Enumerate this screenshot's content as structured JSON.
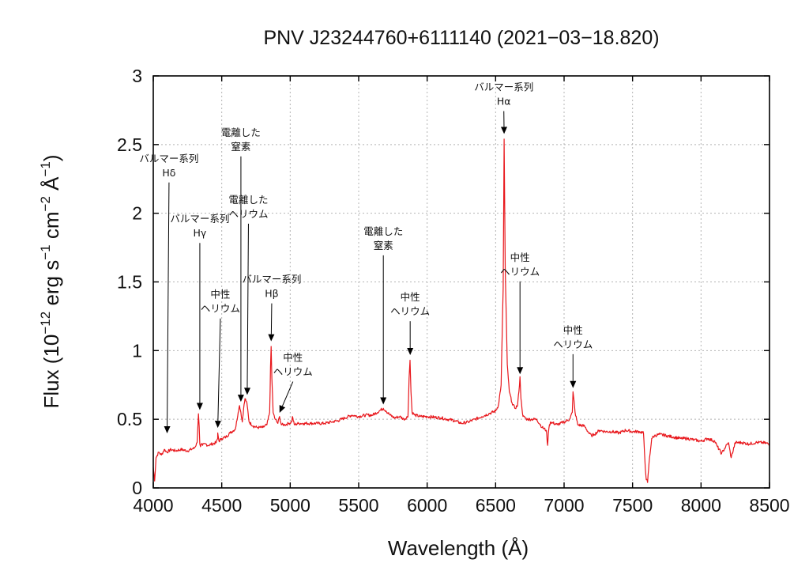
{
  "chart_data": {
    "type": "line",
    "title": "PNV J23244760+6111140 (2021−03−18.820)",
    "xlabel": "Wavelength (Å)",
    "ylabel_parts": {
      "pre": "Flux (10",
      "exp1": "−12",
      "mid": " erg s",
      "exp2": "−1",
      "mid2": " cm",
      "exp3": "−2",
      "mid3": " Å",
      "exp4": "−1",
      "post": ")"
    },
    "xlim": [
      4000,
      8500
    ],
    "ylim": [
      0,
      3
    ],
    "xticks": [
      4000,
      4500,
      5000,
      5500,
      6000,
      6500,
      7000,
      7500,
      8000,
      8500
    ],
    "yticks": [
      0,
      0.5,
      1,
      1.5,
      2,
      2.5,
      3
    ],
    "ytick_labels": [
      "0",
      "0.5",
      "1",
      "1.5",
      "2",
      "2.5",
      "3"
    ],
    "grid": true,
    "line_color": "#e8161b",
    "series": [
      {
        "x": [
          4000,
          4010,
          4020,
          4040,
          4060,
          4080,
          4100,
          4130,
          4160,
          4200,
          4250,
          4300,
          4320,
          4330,
          4335,
          4340,
          4345,
          4350,
          4360,
          4380,
          4400,
          4430,
          4460,
          4470,
          4471,
          4480,
          4500,
          4530,
          4560,
          4600,
          4620,
          4630,
          4640,
          4650,
          4660,
          4670,
          4680,
          4686,
          4700,
          4730,
          4760,
          4800,
          4830,
          4850,
          4856,
          4861,
          4866,
          4875,
          4890,
          4910,
          4922,
          4935,
          4960,
          4990,
          5010,
          5016,
          5030,
          5060,
          5100,
          5150,
          5200,
          5250,
          5300,
          5350,
          5400,
          5450,
          5500,
          5550,
          5600,
          5650,
          5680,
          5700,
          5730,
          5760,
          5800,
          5830,
          5860,
          5868,
          5875,
          5882,
          5890,
          5910,
          5950,
          6000,
          6100,
          6200,
          6250,
          6300,
          6350,
          6400,
          6450,
          6500,
          6520,
          6540,
          6555,
          6562,
          6570,
          6585,
          6600,
          6620,
          6640,
          6660,
          6670,
          6678,
          6685,
          6700,
          6730,
          6760,
          6800,
          6840,
          6870,
          6880,
          6885,
          6890,
          6900,
          6950,
          7000,
          7040,
          7060,
          7065,
          7070,
          7080,
          7100,
          7150,
          7180,
          7200,
          7220,
          7260,
          7300,
          7350,
          7400,
          7450,
          7500,
          7550,
          7580,
          7590,
          7600,
          7610,
          7620,
          7640,
          7660,
          7700,
          7750,
          7800,
          7850,
          7900,
          7950,
          8000,
          8050,
          8100,
          8120,
          8150,
          8180,
          8200,
          8220,
          8250,
          8300,
          8350,
          8400,
          8450,
          8500
        ],
        "y": [
          0.15,
          0.05,
          0.22,
          0.26,
          0.24,
          0.28,
          0.26,
          0.28,
          0.27,
          0.28,
          0.27,
          0.29,
          0.33,
          0.54,
          0.45,
          0.32,
          0.3,
          0.32,
          0.31,
          0.32,
          0.31,
          0.32,
          0.33,
          0.36,
          0.4,
          0.34,
          0.36,
          0.37,
          0.4,
          0.43,
          0.55,
          0.6,
          0.55,
          0.48,
          0.58,
          0.65,
          0.63,
          0.6,
          0.48,
          0.45,
          0.44,
          0.44,
          0.46,
          0.55,
          0.88,
          1.03,
          0.8,
          0.55,
          0.5,
          0.47,
          0.52,
          0.46,
          0.46,
          0.47,
          0.48,
          0.52,
          0.46,
          0.47,
          0.47,
          0.47,
          0.47,
          0.47,
          0.48,
          0.49,
          0.51,
          0.53,
          0.52,
          0.53,
          0.53,
          0.56,
          0.58,
          0.56,
          0.53,
          0.51,
          0.52,
          0.5,
          0.52,
          0.8,
          0.93,
          0.7,
          0.55,
          0.53,
          0.52,
          0.52,
          0.51,
          0.49,
          0.47,
          0.48,
          0.5,
          0.52,
          0.54,
          0.56,
          0.6,
          0.75,
          1.45,
          2.54,
          1.6,
          0.9,
          0.7,
          0.62,
          0.58,
          0.6,
          0.7,
          0.81,
          0.65,
          0.52,
          0.5,
          0.5,
          0.5,
          0.44,
          0.42,
          0.31,
          0.4,
          0.44,
          0.48,
          0.46,
          0.48,
          0.5,
          0.55,
          0.7,
          0.66,
          0.55,
          0.46,
          0.45,
          0.4,
          0.38,
          0.39,
          0.42,
          0.41,
          0.41,
          0.4,
          0.42,
          0.41,
          0.41,
          0.4,
          0.2,
          0.06,
          0.04,
          0.18,
          0.36,
          0.38,
          0.39,
          0.38,
          0.37,
          0.36,
          0.36,
          0.35,
          0.34,
          0.36,
          0.34,
          0.3,
          0.25,
          0.3,
          0.33,
          0.22,
          0.33,
          0.33,
          0.32,
          0.33,
          0.33,
          0.32
        ]
      }
    ],
    "annotations": [
      {
        "lines": [
          "バルマー系列",
          "Hδ"
        ],
        "x": 4101,
        "y": 0.38,
        "label_y": 2.27,
        "label_x": 4115
      },
      {
        "lines": [
          "バルマー系列",
          "Hγ"
        ],
        "x": 4340,
        "y": 0.55,
        "label_y": 1.83,
        "label_x": 4340
      },
      {
        "lines": [
          "中性",
          "ヘリウム"
        ],
        "x": 4471,
        "y": 0.42,
        "label_y": 1.28,
        "label_x": 4490
      },
      {
        "lines": [
          "電離した",
          "窒素"
        ],
        "x": 4640,
        "y": 0.61,
        "label_y": 2.46,
        "label_x": 4640
      },
      {
        "lines": [
          "電離した",
          "ヘリウム"
        ],
        "x": 4686,
        "y": 0.66,
        "label_y": 1.97,
        "label_x": 4695
      },
      {
        "lines": [
          "バルマー系列",
          "Hβ"
        ],
        "x": 4861,
        "y": 1.05,
        "label_y": 1.39,
        "label_x": 4865
      },
      {
        "lines": [
          "中性",
          "ヘリウム"
        ],
        "x": 4922,
        "y": 0.53,
        "label_y": 0.82,
        "label_x": 5020
      },
      {
        "lines": [
          "電離した",
          "窒素"
        ],
        "x": 5680,
        "y": 0.59,
        "label_y": 1.74,
        "label_x": 5680
      },
      {
        "lines": [
          "中性",
          "ヘリウム"
        ],
        "x": 5876,
        "y": 0.95,
        "label_y": 1.26,
        "label_x": 5876
      },
      {
        "lines": [
          "バルマー系列",
          "Hα"
        ],
        "x": 6562,
        "y": 2.56,
        "label_y": 2.79,
        "label_x": 6560
      },
      {
        "lines": [
          "中性",
          "ヘリウム"
        ],
        "x": 6678,
        "y": 0.81,
        "label_y": 1.55,
        "label_x": 6678
      },
      {
        "lines": [
          "中性",
          "ヘリウム"
        ],
        "x": 7065,
        "y": 0.71,
        "label_y": 1.02,
        "label_x": 7065
      }
    ]
  }
}
